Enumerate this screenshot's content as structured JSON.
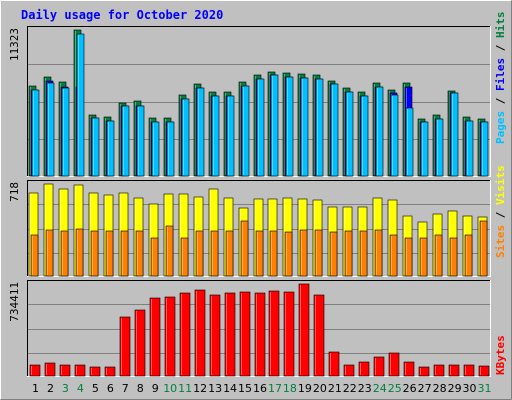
{
  "chart_data": {
    "type": "bar",
    "title": "Daily usage for October 2020",
    "days": [
      "1",
      "2",
      "3",
      "4",
      "5",
      "6",
      "7",
      "8",
      "9",
      "10",
      "11",
      "12",
      "13",
      "14",
      "15",
      "16",
      "17",
      "18",
      "19",
      "20",
      "21",
      "22",
      "23",
      "24",
      "25",
      "26",
      "27",
      "28",
      "29",
      "30",
      "31"
    ],
    "weekend_days": [
      "3",
      "4",
      "10",
      "11",
      "17",
      "18",
      "24",
      "25",
      "31"
    ],
    "panels": [
      {
        "name": "hits-files-pages",
        "max_label": "11323",
        "ymax": 11323,
        "series": [
          {
            "name": "Hits",
            "color": "#008040",
            "values": [
              7000,
              7700,
              7300,
              11323,
              4700,
              4600,
              5700,
              5800,
              4500,
              4500,
              6300,
              7100,
              6500,
              6500,
              7300,
              7800,
              8100,
              8000,
              7900,
              7800,
              7400,
              6800,
              6500,
              7200,
              6700,
              7200,
              4400,
              4700,
              6600,
              4600,
              4400
            ]
          },
          {
            "name": "Files",
            "color": "#0000ff",
            "values": [
              6700,
              7400,
              6900,
              6900,
              4500,
              4300,
              5400,
              5400,
              4200,
              4200,
              6000,
              6800,
              6200,
              6200,
              7000,
              7500,
              7800,
              7700,
              7600,
              7500,
              7100,
              6500,
              6200,
              6900,
              6400,
              6900,
              4200,
              4400,
              6400,
              4300,
              4200
            ]
          },
          {
            "name": "Pages",
            "color": "#00c0ff",
            "values": [
              6700,
              7200,
              6800,
              11000,
              4500,
              4300,
              5400,
              5400,
              4200,
              4200,
              6000,
              6800,
              6200,
              6200,
              7000,
              7500,
              7800,
              7700,
              7600,
              7500,
              7100,
              6500,
              6200,
              6900,
              6300,
              5300,
              4200,
              4400,
              6400,
              4300,
              4200
            ]
          }
        ],
        "side_labels": [
          {
            "text": "Pages",
            "color": "#00c0ff"
          },
          {
            "text": " / ",
            "color": "#000000"
          },
          {
            "text": "Files",
            "color": "#0000ff"
          },
          {
            "text": " / ",
            "color": "#000000"
          },
          {
            "text": "Hits",
            "color": "#008040"
          }
        ]
      },
      {
        "name": "visits-sites",
        "max_label": "718",
        "ymax": 718,
        "series": [
          {
            "name": "Visits",
            "color": "#ffff00",
            "values": [
              650,
              718,
              680,
              710,
              645,
              630,
              650,
              610,
              560,
              640,
              640,
              620,
              680,
              610,
              530,
              600,
              600,
              605,
              600,
              595,
              540,
              540,
              535,
              605,
              590,
              465,
              420,
              485,
              510,
              465,
              460
            ]
          },
          {
            "name": "Sites",
            "color": "#ff8000",
            "values": [
              320,
              360,
              350,
              370,
              350,
              350,
              350,
              350,
              300,
              390,
              300,
              350,
              350,
              350,
              430,
              350,
              350,
              340,
              360,
              360,
              340,
              350,
              350,
              360,
              320,
              300,
              300,
              320,
              300,
              320,
              430
            ]
          }
        ],
        "side_labels": [
          {
            "text": "Sites",
            "color": "#ff8000"
          },
          {
            "text": " / ",
            "color": "#000000"
          },
          {
            "text": "Visits",
            "color": "#ffff00"
          }
        ]
      },
      {
        "name": "kbytes",
        "max_label": "734411",
        "ymax": 734411,
        "series": [
          {
            "name": "KBytes",
            "color": "#ff0000",
            "values": [
              90000,
              100000,
              90000,
              85000,
              75000,
              70000,
              470000,
              530000,
              620000,
              630000,
              660000,
              690000,
              650000,
              660000,
              670000,
              660000,
              680000,
              670000,
              734411,
              650000,
              190000,
              90000,
              110000,
              150000,
              180000,
              110000,
              70000,
              90000,
              90000,
              90000,
              80000
            ]
          }
        ],
        "side_labels": [
          {
            "text": "KBytes",
            "color": "#ff0000"
          }
        ]
      }
    ],
    "colors": {
      "title": "#0000ff",
      "weekday_label": "#000000",
      "weekend_label": "#008040",
      "plot_bg": "#c0c0c0",
      "grid": "#808080"
    }
  }
}
